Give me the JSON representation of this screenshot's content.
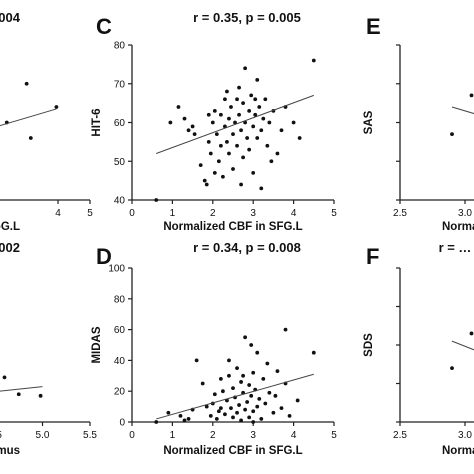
{
  "chart_data": [
    {
      "panel": "",
      "type": "scatter",
      "title": "…0.004",
      "xlabel": "…in PoG.L",
      "ylabel": "",
      "xlim": [
        0,
        5
      ],
      "ylim": [
        40,
        80
      ],
      "xticks": [
        "4",
        "5"
      ],
      "yticks": [],
      "points": [
        [
          3.02,
          70
        ],
        [
          3.95,
          64
        ],
        [
          3.15,
          56
        ],
        [
          2.4,
          60
        ]
      ],
      "fit": [
        [
          1.5,
          57.5
        ],
        [
          3.95,
          63.5
        ]
      ]
    },
    {
      "panel": "C",
      "type": "scatter",
      "title": "r = 0.35, p = 0.005",
      "xlabel": "Normalized CBF in SFG.L",
      "ylabel": "HIT-6",
      "xlim": [
        0,
        5
      ],
      "ylim": [
        40,
        80
      ],
      "xticks": [
        "0",
        "1",
        "2",
        "3",
        "4",
        "5"
      ],
      "yticks": [
        "40",
        "50",
        "60",
        "70",
        "80"
      ],
      "points": [
        [
          0.6,
          40
        ],
        [
          0.95,
          60
        ],
        [
          1.15,
          64
        ],
        [
          1.3,
          61
        ],
        [
          1.4,
          58
        ],
        [
          1.5,
          59
        ],
        [
          1.55,
          57
        ],
        [
          1.7,
          49
        ],
        [
          1.8,
          45
        ],
        [
          1.85,
          44
        ],
        [
          1.9,
          55
        ],
        [
          1.95,
          52
        ],
        [
          2.0,
          60
        ],
        [
          2.05,
          63
        ],
        [
          2.1,
          57
        ],
        [
          2.15,
          50
        ],
        [
          2.2,
          54
        ],
        [
          2.2,
          62
        ],
        [
          2.25,
          46
        ],
        [
          2.3,
          66
        ],
        [
          2.3,
          59
        ],
        [
          2.35,
          55
        ],
        [
          2.4,
          61
        ],
        [
          2.4,
          52
        ],
        [
          2.45,
          64
        ],
        [
          2.5,
          57
        ],
        [
          2.5,
          48
        ],
        [
          2.55,
          60
        ],
        [
          2.6,
          66
        ],
        [
          2.6,
          54
        ],
        [
          2.65,
          62
        ],
        [
          2.7,
          58
        ],
        [
          2.7,
          44
        ],
        [
          2.75,
          65
        ],
        [
          2.75,
          51
        ],
        [
          2.8,
          60
        ],
        [
          2.8,
          74
        ],
        [
          2.85,
          56
        ],
        [
          2.9,
          63
        ],
        [
          2.9,
          53
        ],
        [
          2.95,
          67
        ],
        [
          3.0,
          59
        ],
        [
          3.0,
          47
        ],
        [
          3.05,
          62
        ],
        [
          3.1,
          71
        ],
        [
          3.1,
          56
        ],
        [
          3.15,
          64
        ],
        [
          3.2,
          58
        ],
        [
          3.2,
          43
        ],
        [
          3.25,
          61
        ],
        [
          3.3,
          66
        ],
        [
          3.35,
          54
        ],
        [
          3.4,
          60
        ],
        [
          3.5,
          63
        ],
        [
          3.6,
          52
        ],
        [
          3.7,
          58
        ],
        [
          3.8,
          64
        ],
        [
          4.0,
          60
        ],
        [
          4.15,
          56
        ],
        [
          4.5,
          76
        ],
        [
          2.35,
          68
        ],
        [
          3.45,
          50
        ],
        [
          2.05,
          47
        ],
        [
          1.9,
          62
        ],
        [
          2.65,
          69
        ],
        [
          3.05,
          66
        ]
      ],
      "fit": [
        [
          0.6,
          52
        ],
        [
          4.5,
          67
        ]
      ]
    },
    {
      "panel": "E",
      "type": "scatter",
      "title": "",
      "xlabel": "Normal…",
      "ylabel": "SAS",
      "xlim": [
        2.5,
        3.5
      ],
      "ylim": [
        30,
        70
      ],
      "xticks": [
        "2.5",
        "3.0",
        "3…"
      ],
      "yticks": [],
      "points": [
        [
          2.9,
          47
        ],
        [
          3.05,
          57
        ],
        [
          3.15,
          55
        ],
        [
          3.25,
          50
        ],
        [
          3.35,
          53
        ],
        [
          3.4,
          49
        ],
        [
          3.1,
          52
        ]
      ],
      "fit": [
        [
          2.9,
          54
        ],
        [
          3.5,
          48
        ]
      ]
    },
    {
      "panel": "",
      "type": "scatter",
      "title": "…0.002",
      "xlabel": "…thalamus",
      "ylabel": "",
      "xlim": [
        3.5,
        5.5
      ],
      "ylim": [
        0,
        100
      ],
      "xticks": [
        "4.5",
        "5.0",
        "5.5"
      ],
      "yticks": [],
      "points": [
        [
          4.5,
          29
        ],
        [
          4.6,
          29
        ],
        [
          4.75,
          18
        ],
        [
          4.98,
          17
        ],
        [
          4.0,
          8
        ],
        [
          3.95,
          20
        ]
      ],
      "fit": [
        [
          3.95,
          16
        ],
        [
          5.0,
          23
        ]
      ]
    },
    {
      "panel": "D",
      "type": "scatter",
      "title": "r = 0.34, p = 0.008",
      "xlabel": "Normalized CBF in SFG.L",
      "ylabel": "MIDAS",
      "xlim": [
        0,
        5
      ],
      "ylim": [
        0,
        100
      ],
      "xticks": [
        "0",
        "1",
        "2",
        "3",
        "4",
        "5"
      ],
      "yticks": [
        "0",
        "20",
        "40",
        "60",
        "80",
        "100"
      ],
      "points": [
        [
          0.6,
          0
        ],
        [
          0.9,
          6
        ],
        [
          1.2,
          4
        ],
        [
          1.4,
          2
        ],
        [
          1.5,
          8
        ],
        [
          1.6,
          40
        ],
        [
          1.75,
          25
        ],
        [
          1.85,
          10
        ],
        [
          1.95,
          4
        ],
        [
          2.0,
          12
        ],
        [
          2.05,
          18
        ],
        [
          2.1,
          2
        ],
        [
          2.15,
          7
        ],
        [
          2.2,
          28
        ],
        [
          2.25,
          20
        ],
        [
          2.3,
          5
        ],
        [
          2.35,
          14
        ],
        [
          2.4,
          30
        ],
        [
          2.45,
          9
        ],
        [
          2.5,
          3
        ],
        [
          2.5,
          22
        ],
        [
          2.55,
          16
        ],
        [
          2.6,
          35
        ],
        [
          2.6,
          6
        ],
        [
          2.65,
          11
        ],
        [
          2.7,
          26
        ],
        [
          2.7,
          1
        ],
        [
          2.75,
          19
        ],
        [
          2.8,
          8
        ],
        [
          2.8,
          55
        ],
        [
          2.85,
          13
        ],
        [
          2.9,
          24
        ],
        [
          2.9,
          3
        ],
        [
          2.95,
          17
        ],
        [
          3.0,
          32
        ],
        [
          3.0,
          7
        ],
        [
          3.05,
          21
        ],
        [
          3.1,
          10
        ],
        [
          3.1,
          45
        ],
        [
          3.15,
          15
        ],
        [
          3.2,
          2
        ],
        [
          3.25,
          28
        ],
        [
          3.3,
          12
        ],
        [
          3.4,
          19
        ],
        [
          3.5,
          6
        ],
        [
          3.6,
          33
        ],
        [
          3.7,
          9
        ],
        [
          3.8,
          60
        ],
        [
          3.8,
          25
        ],
        [
          3.9,
          4
        ],
        [
          4.1,
          14
        ],
        [
          4.5,
          45
        ],
        [
          1.3,
          1
        ],
        [
          2.4,
          40
        ],
        [
          2.95,
          50
        ],
        [
          3.35,
          38
        ],
        [
          3.0,
          0
        ],
        [
          2.2,
          9
        ],
        [
          2.75,
          30
        ],
        [
          3.55,
          17
        ]
      ],
      "fit": [
        [
          0.6,
          2
        ],
        [
          4.5,
          31
        ]
      ]
    },
    {
      "panel": "F",
      "type": "scatter",
      "title": "r = …",
      "xlabel": "Normal…",
      "ylabel": "SDS",
      "xlim": [
        2.5,
        3.5
      ],
      "ylim": [
        30,
        70
      ],
      "xticks": [
        "2.5",
        "3.0",
        "3…"
      ],
      "yticks": [],
      "points": [
        [
          2.9,
          44
        ],
        [
          3.05,
          53
        ],
        [
          3.15,
          56
        ],
        [
          3.25,
          54
        ],
        [
          3.1,
          37
        ],
        [
          3.3,
          40
        ],
        [
          3.35,
          60
        ]
      ],
      "fit": [
        [
          2.9,
          51
        ],
        [
          3.5,
          43
        ]
      ]
    }
  ]
}
